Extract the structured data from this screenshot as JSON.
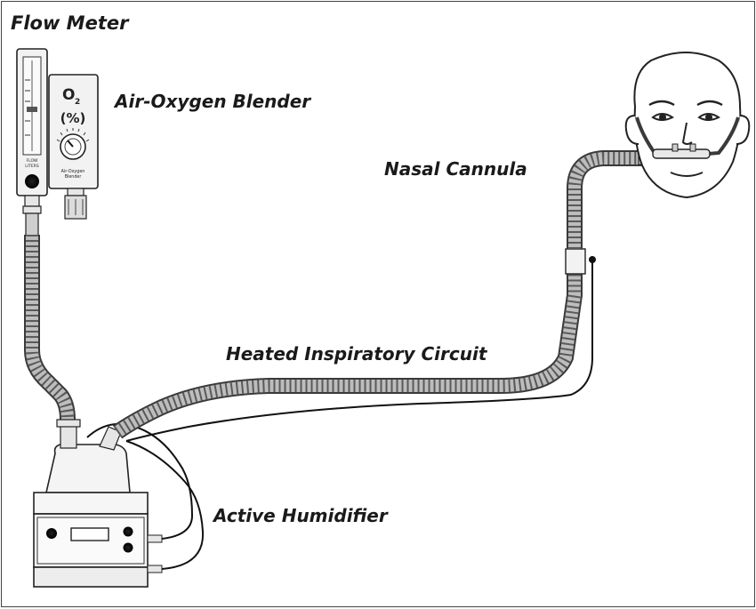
{
  "labels": {
    "flow_meter": "Flow Meter",
    "blender": "Air-Oxygen Blender",
    "nasal_cannula": "Nasal Cannula",
    "heated_circuit": "Heated Inspiratory Circuit",
    "humidifier": "Active Humidifier"
  },
  "blender_face": {
    "o2_main": "O",
    "o2_sub": "2",
    "percent": "(%)",
    "caption_line1": "Air-Oxygen",
    "caption_line2": "Blender"
  },
  "flow_meter_face": {
    "caption_line1": "FLOW",
    "caption_line2": "LITERS"
  },
  "colors": {
    "ink": "#1a1a1a",
    "tube_fill": "#b8b8b8",
    "tube_ring": "#6a6a6a",
    "device_fill": "#f2f2f2"
  }
}
